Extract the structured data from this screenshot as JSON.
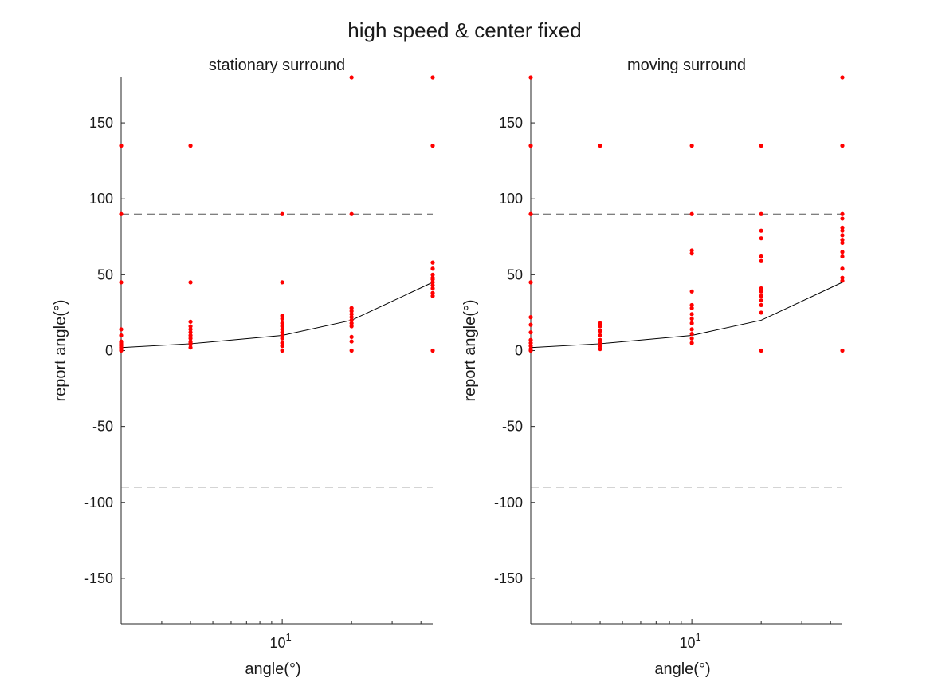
{
  "figure": {
    "suptitle": "high speed & center fixed"
  },
  "chart_data": [
    {
      "type": "scatter",
      "title": "stationary surround",
      "xlabel": "angle(°)",
      "ylabel": "report angle(°)",
      "xscale": "log",
      "xlim": [
        2,
        45
      ],
      "ylim": [
        -180,
        180
      ],
      "yticks": [
        -150,
        -100,
        -50,
        0,
        50,
        100,
        150
      ],
      "xticks": [
        {
          "value": 10,
          "base": "10",
          "exponent": "1"
        }
      ],
      "reference_lines": [
        90,
        -90
      ],
      "mean_line": {
        "x": [
          2,
          4,
          10,
          20,
          45
        ],
        "y": [
          2,
          4.5,
          10,
          20,
          45
        ]
      },
      "points": [
        {
          "x": 2,
          "y": [
            0,
            1,
            2,
            3,
            4,
            5,
            6,
            10,
            14,
            45,
            90,
            135
          ]
        },
        {
          "x": 4,
          "y": [
            2,
            4,
            5,
            6,
            8,
            10,
            12,
            14,
            16,
            19,
            45,
            135
          ]
        },
        {
          "x": 10,
          "y": [
            0,
            3,
            5,
            8,
            10,
            12,
            14,
            16,
            18,
            21,
            23,
            45,
            90
          ]
        },
        {
          "x": 20,
          "y": [
            0,
            6,
            9,
            16,
            18,
            20,
            22,
            24,
            26,
            28,
            90,
            180
          ]
        },
        {
          "x": 45,
          "y": [
            0,
            36,
            38,
            41,
            43,
            45,
            47,
            48,
            50,
            54,
            58,
            135,
            180
          ]
        }
      ]
    },
    {
      "type": "scatter",
      "title": "moving surround",
      "xlabel": "angle(°)",
      "ylabel": "report angle(°)",
      "xscale": "log",
      "xlim": [
        2,
        45
      ],
      "ylim": [
        -180,
        180
      ],
      "yticks": [
        -150,
        -100,
        -50,
        0,
        50,
        100,
        150
      ],
      "xticks": [
        {
          "value": 10,
          "base": "10",
          "exponent": "1"
        }
      ],
      "reference_lines": [
        90,
        -90
      ],
      "mean_line": {
        "x": [
          2,
          4,
          10,
          20,
          45
        ],
        "y": [
          2,
          4.5,
          10,
          20,
          45
        ]
      },
      "points": [
        {
          "x": 2,
          "y": [
            0,
            1,
            3,
            5,
            7,
            12,
            17,
            22,
            45,
            90,
            135,
            180
          ]
        },
        {
          "x": 4,
          "y": [
            1,
            3,
            5,
            7,
            10,
            13,
            16,
            18,
            135
          ]
        },
        {
          "x": 10,
          "y": [
            5,
            8,
            11,
            14,
            18,
            21,
            24,
            28,
            30,
            39,
            64,
            66,
            90,
            135
          ]
        },
        {
          "x": 20,
          "y": [
            0,
            25,
            30,
            33,
            36,
            39,
            41,
            59,
            62,
            74,
            79,
            90,
            135
          ]
        },
        {
          "x": 45,
          "y": [
            0,
            46,
            48,
            54,
            62,
            65,
            71,
            73,
            76,
            79,
            81,
            87,
            90,
            135,
            180
          ]
        }
      ]
    }
  ]
}
